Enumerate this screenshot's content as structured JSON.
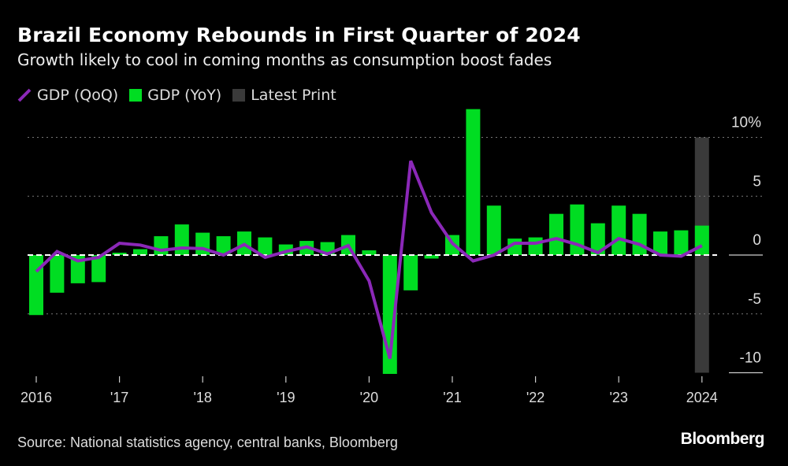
{
  "title": "Brazil Economy Rebounds in First Quarter of 2024",
  "subtitle": "Growth likely to cool in coming months as consumption boost fades",
  "legend": [
    {
      "label": "GDP (QoQ)",
      "color": "#8b28b8",
      "shape": "line"
    },
    {
      "label": "GDP (YoY)",
      "color": "#00dd22",
      "shape": "square"
    },
    {
      "label": "Latest Print",
      "color": "#3a3a3a",
      "shape": "square"
    }
  ],
  "source": "Source: National statistics agency, central banks, Bloomberg",
  "brand": "Bloomberg",
  "chart_data": {
    "type": "bar+line",
    "x_start": "2016 Q1",
    "frequency": "quarterly",
    "x_tick_labels": [
      "2016",
      "'17",
      "'18",
      "'19",
      "'20",
      "'21",
      "'22",
      "'23",
      "2024"
    ],
    "y_tick_labels": [
      "10%",
      "5",
      "0",
      "-5",
      "-10"
    ],
    "y_ticks": [
      10,
      5,
      0,
      -5,
      -10
    ],
    "ylim": [
      -10,
      10
    ],
    "grid": true,
    "legend_position": "top-left",
    "y_axis_position": "right",
    "series": [
      {
        "name": "GDP (YoY)",
        "type": "bar",
        "color": "#00dd22",
        "values": [
          -5.1,
          -3.2,
          -2.4,
          -2.3,
          0.2,
          0.5,
          1.6,
          2.6,
          1.9,
          1.6,
          2.0,
          1.5,
          0.9,
          1.2,
          1.1,
          1.7,
          0.4,
          -10.1,
          -3.0,
          -0.3,
          1.7,
          12.4,
          4.2,
          1.4,
          1.5,
          3.5,
          4.3,
          2.7,
          4.2,
          3.5,
          2.0,
          2.1,
          2.5
        ]
      },
      {
        "name": "GDP (QoQ)",
        "type": "line",
        "color": "#8b28b8",
        "values": [
          -1.4,
          0.3,
          -0.5,
          -0.2,
          1.0,
          0.85,
          0.4,
          0.6,
          0.55,
          0.0,
          0.9,
          -0.2,
          0.3,
          0.7,
          0.1,
          0.8,
          -2.2,
          -8.8,
          8.0,
          3.6,
          1.0,
          -0.5,
          0.0,
          1.0,
          1.0,
          1.4,
          0.9,
          0.2,
          1.4,
          0.9,
          0.0,
          -0.1,
          0.8
        ]
      }
    ],
    "highlight": {
      "name": "Latest Print",
      "index": 32,
      "color": "#3a3a3a"
    }
  }
}
